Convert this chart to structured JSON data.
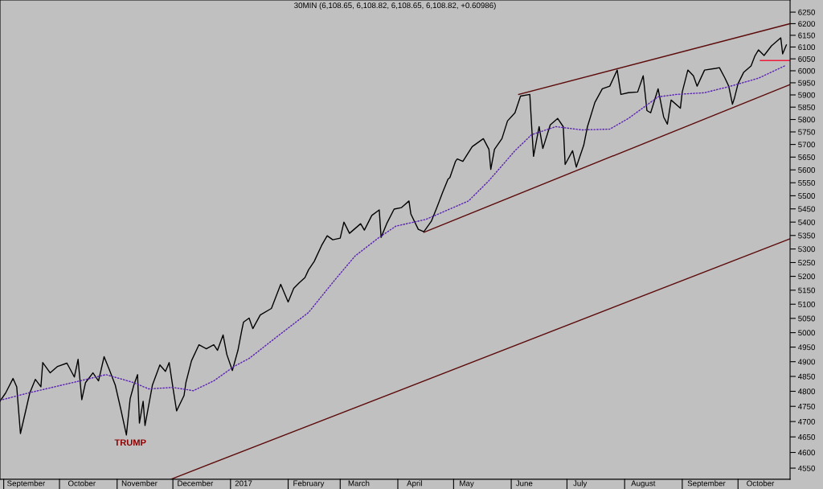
{
  "chart_data": {
    "type": "line",
    "title": "30MIN (6,108.65, 6,108.82, 6,108.65, 6,108.82, +0.60986)",
    "log": "y",
    "grid": false,
    "legend": false,
    "marker": "none",
    "xlim": [
      "2016-08-30",
      "2017-10-29"
    ],
    "xticks": [
      {
        "value": "2016-09-13",
        "label": "September"
      },
      {
        "value": "2016-10-13",
        "label": "October"
      },
      {
        "value": "2016-11-13",
        "label": "November"
      },
      {
        "value": "2016-12-13",
        "label": "December"
      },
      {
        "value": "2017-01-08",
        "label": "2017"
      },
      {
        "value": "2017-02-12",
        "label": "February"
      },
      {
        "value": "2017-03-11",
        "label": "March"
      },
      {
        "value": "2017-04-10",
        "label": "April"
      },
      {
        "value": "2017-05-08",
        "label": "May"
      },
      {
        "value": "2017-06-08",
        "label": "June"
      },
      {
        "value": "2017-07-08",
        "label": "July"
      },
      {
        "value": "2017-08-11",
        "label": "August"
      },
      {
        "value": "2017-09-14",
        "label": "September"
      },
      {
        "value": "2017-10-13",
        "label": "October"
      }
    ],
    "ylim": [
      4515,
      6303
    ],
    "yticks": [
      4550,
      4600,
      4650,
      4700,
      4750,
      4800,
      4850,
      4900,
      4950,
      5000,
      5050,
      5100,
      5150,
      5200,
      5250,
      5300,
      5350,
      5400,
      5450,
      5500,
      5550,
      5600,
      5650,
      5700,
      5750,
      5800,
      5850,
      5900,
      5950,
      6000,
      6050,
      6100,
      6150,
      6200,
      6250
    ],
    "annotations": [
      "TRUMP"
    ],
    "series": [
      {
        "color": "#000000",
        "line_style": "solid",
        "x": [
          "2016-08-30",
          "2016-09-02",
          "2016-09-06",
          "2016-09-08",
          "2016-09-10",
          "2016-09-13",
          "2016-09-15",
          "2016-09-18",
          "2016-09-21",
          "2016-09-22",
          "2016-09-26",
          "2016-09-30",
          "2016-10-05",
          "2016-10-09",
          "2016-10-11",
          "2016-10-13",
          "2016-10-15",
          "2016-10-19",
          "2016-10-22",
          "2016-10-25",
          "2016-10-28",
          "2016-10-31",
          "2016-11-03",
          "2016-11-06",
          "2016-11-08",
          "2016-11-10",
          "2016-11-12",
          "2016-11-13",
          "2016-11-15",
          "2016-11-16",
          "2016-11-20",
          "2016-11-24",
          "2016-11-27",
          "2016-11-29",
          "2016-12-01",
          "2016-12-03",
          "2016-12-07",
          "2016-12-08",
          "2016-12-11",
          "2016-12-15",
          "2016-12-19",
          "2016-12-23",
          "2016-12-25",
          "2016-12-28",
          "2016-12-30",
          "2017-01-02",
          "2017-01-05",
          "2017-01-07",
          "2017-01-08",
          "2017-01-11",
          "2017-01-13",
          "2017-01-17",
          "2017-01-23",
          "2017-01-25",
          "2017-01-28",
          "2017-02-01",
          "2017-02-04",
          "2017-02-07",
          "2017-02-10",
          "2017-02-12",
          "2017-02-15",
          "2017-02-19",
          "2017-02-22",
          "2017-02-25",
          "2017-03-01",
          "2017-03-03",
          "2017-03-06",
          "2017-03-12",
          "2017-03-14",
          "2017-03-18",
          "2017-03-22",
          "2017-03-23",
          "2017-03-26",
          "2017-03-30",
          "2017-04-03",
          "2017-04-07",
          "2017-04-08",
          "2017-04-12",
          "2017-04-15",
          "2017-04-19",
          "2017-04-22",
          "2017-04-25",
          "2017-04-28",
          "2017-04-29",
          "2017-05-02",
          "2017-05-03",
          "2017-05-06",
          "2017-05-11",
          "2017-05-17",
          "2017-05-20",
          "2017-05-21",
          "2017-05-23",
          "2017-05-27",
          "2017-05-30",
          "2017-06-03",
          "2017-06-06",
          "2017-06-11",
          "2017-06-12",
          "2017-06-13",
          "2017-06-16",
          "2017-06-18",
          "2017-06-22",
          "2017-06-26",
          "2017-06-29",
          "2017-06-30",
          "2017-07-04",
          "2017-07-06",
          "2017-07-10",
          "2017-07-12",
          "2017-07-16",
          "2017-07-20",
          "2017-07-24",
          "2017-07-28",
          "2017-07-30",
          "2017-08-03",
          "2017-08-08",
          "2017-08-11",
          "2017-08-13",
          "2017-08-15",
          "2017-08-19",
          "2017-08-22",
          "2017-08-24",
          "2017-08-26",
          "2017-08-31",
          "2017-09-01",
          "2017-09-04",
          "2017-09-07",
          "2017-09-09",
          "2017-09-13",
          "2017-09-19",
          "2017-09-21",
          "2017-09-24",
          "2017-09-26",
          "2017-09-28",
          "2017-09-29",
          "2017-10-01",
          "2017-10-04",
          "2017-10-08",
          "2017-10-10",
          "2017-10-12",
          "2017-10-15",
          "2017-10-19",
          "2017-10-24",
          "2017-10-25",
          "2017-10-27"
        ],
        "values": [
          4767,
          4794,
          4843,
          4815,
          4661,
          4740,
          4794,
          4840,
          4815,
          4897,
          4862,
          4884,
          4895,
          4848,
          4908,
          4772,
          4829,
          4862,
          4835,
          4917,
          4870,
          4821,
          4740,
          4656,
          4775,
          4821,
          4856,
          4695,
          4767,
          4687,
          4821,
          4889,
          4867,
          4897,
          4813,
          4735,
          4786,
          4829,
          4903,
          4958,
          4944,
          4958,
          4939,
          4992,
          4925,
          4870,
          4939,
          5006,
          5037,
          5051,
          5014,
          5062,
          5085,
          5119,
          5171,
          5108,
          5157,
          5177,
          5195,
          5224,
          5254,
          5313,
          5349,
          5334,
          5340,
          5400,
          5358,
          5394,
          5370,
          5425,
          5446,
          5343,
          5394,
          5449,
          5455,
          5480,
          5431,
          5373,
          5364,
          5403,
          5455,
          5511,
          5564,
          5570,
          5633,
          5643,
          5633,
          5691,
          5723,
          5681,
          5602,
          5681,
          5723,
          5794,
          5827,
          5895,
          5902,
          5771,
          5653,
          5771,
          5684,
          5778,
          5804,
          5771,
          5621,
          5675,
          5611,
          5697,
          5771,
          5869,
          5925,
          5936,
          6003,
          5902,
          5909,
          5912,
          5979,
          5836,
          5827,
          5925,
          5810,
          5781,
          5879,
          5846,
          5912,
          6003,
          5979,
          5936,
          6003,
          6010,
          6013,
          5969,
          5936,
          5862,
          5885,
          5946,
          5993,
          6020,
          6061,
          6088,
          6064,
          6105,
          6139,
          6071,
          6109
        ]
      },
      {
        "color": "#5a22b4",
        "line_style": "dotted",
        "x": [
          "2016-08-30",
          "2016-09-14",
          "2016-10-12",
          "2016-10-26",
          "2016-11-10",
          "2016-11-18",
          "2016-12-01",
          "2016-12-12",
          "2016-12-23",
          "2017-01-03",
          "2017-01-11",
          "2017-01-26",
          "2017-02-12",
          "2017-02-26",
          "2017-03-09",
          "2017-03-22",
          "2017-03-31",
          "2017-04-16",
          "2017-05-09",
          "2017-05-20",
          "2017-06-03",
          "2017-06-12",
          "2017-06-25",
          "2017-07-09",
          "2017-07-24",
          "2017-08-03",
          "2017-08-19",
          "2017-08-29",
          "2017-09-13",
          "2017-09-27",
          "2017-10-12",
          "2017-10-26"
        ],
        "values": [
          4770,
          4794,
          4835,
          4856,
          4829,
          4808,
          4813,
          4802,
          4835,
          4884,
          4911,
          4986,
          5071,
          5186,
          5274,
          5343,
          5385,
          5410,
          5480,
          5558,
          5675,
          5739,
          5771,
          5758,
          5761,
          5804,
          5892,
          5902,
          5909,
          5936,
          5969,
          6020
        ]
      },
      {
        "color": "#5c0a0a",
        "line_style": "solid",
        "x": [
          "2017-06-05",
          "2017-10-29"
        ],
        "values": [
          5902,
          6200
        ]
      },
      {
        "color": "#5c0a0a",
        "line_style": "solid",
        "x": [
          "2017-04-15",
          "2017-10-29"
        ],
        "values": [
          5362,
          5943
        ]
      },
      {
        "color": "#5c0a0a",
        "line_style": "solid",
        "x": [
          "2016-11-30",
          "2017-10-29"
        ],
        "values": [
          4515,
          5338
        ]
      },
      {
        "color": "#ee1c3a",
        "line_style": "solid",
        "x": [
          "2017-10-13",
          "2017-10-29"
        ],
        "values": [
          6043,
          6043
        ]
      }
    ]
  }
}
